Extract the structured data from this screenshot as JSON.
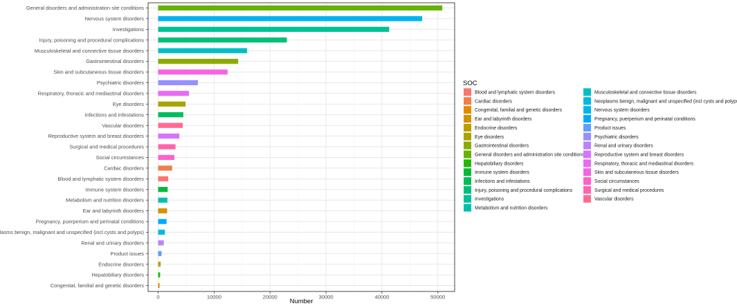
{
  "chart_data": {
    "type": "bar",
    "orientation": "horizontal",
    "xlabel": "Number",
    "ylabel": "",
    "xlim": [
      -1800,
      53000
    ],
    "xticks": [
      0,
      10000,
      20000,
      30000,
      40000,
      50000
    ],
    "grid": true,
    "legend": {
      "title": "SOC",
      "placement": "right",
      "entries": [
        {
          "label": "Blood and lymphatic system disorders",
          "color": "#F8766D"
        },
        {
          "label": "Cardiac disorders",
          "color": "#F07E4B"
        },
        {
          "label": "Congenital, familial and genetic disorders",
          "color": "#E38900"
        },
        {
          "label": "Ear and labyrinth disorders",
          "color": "#D39200"
        },
        {
          "label": "Endocrine disorders",
          "color": "#C09B00"
        },
        {
          "label": "Eye disorders",
          "color": "#A8A400"
        },
        {
          "label": "Gastrointestinal disorders",
          "color": "#8CAB00"
        },
        {
          "label": "General disorders and administration site conditions",
          "color": "#65B200"
        },
        {
          "label": "Hepatobiliary disorders",
          "color": "#24B700"
        },
        {
          "label": "Immune system disorders",
          "color": "#00BA38"
        },
        {
          "label": "Infections and infestations",
          "color": "#00BD5C"
        },
        {
          "label": "Injury, poisoning and procedural complications",
          "color": "#00C079"
        },
        {
          "label": "Investigations",
          "color": "#00C097"
        },
        {
          "label": "Metabolism and nutrition disorders",
          "color": "#00BFB1"
        },
        {
          "label": "Musculoskeletal and connective tissue disorders",
          "color": "#00BFC4"
        },
        {
          "label": "Neoplasms benign, malignant and unspecified (incl cysts and polyps)",
          "color": "#00BADE"
        },
        {
          "label": "Nervous system disorders",
          "color": "#00B4EF"
        },
        {
          "label": "Pregnancy, puerperium and perinatal conditions",
          "color": "#00A9FF"
        },
        {
          "label": "Product issues",
          "color": "#619CFF"
        },
        {
          "label": "Psychiatric disorders",
          "color": "#9590FF"
        },
        {
          "label": "Renal and urinary disorders",
          "color": "#B983FF"
        },
        {
          "label": "Reproductive system and breast disorders",
          "color": "#D575FE"
        },
        {
          "label": "Respiratory, thoracic and mediastinal disorders",
          "color": "#E76BF3"
        },
        {
          "label": "Skin and subcutaneous tissue disorders",
          "color": "#F564E3"
        },
        {
          "label": "Social circumstances",
          "color": "#FF61C9"
        },
        {
          "label": "Surgical and medical procedures",
          "color": "#FF65AC"
        },
        {
          "label": "Vascular disorders",
          "color": "#FF6C91"
        }
      ]
    },
    "categories": [
      "General disorders and administration site conditions",
      "Nervous system disorders",
      "Investigations",
      "Injury, poisoning and procedural complications",
      "Musculoskeletal and connective tissue disorders",
      "Gastrointestinal disorders",
      "Skin and subcutaneous tissue disorders",
      "Psychiatric disorders",
      "Respiratory, thoracic and mediastinal disorders",
      "Eye disorders",
      "Infections and infestations",
      "Vascular disorders",
      "Reproductive system and breast disorders",
      "Surgical and medical procedures",
      "Social circumstances",
      "Cardiac disorders",
      "Blood and lymphatic system disorders",
      "Immune system disorders",
      "Metabolism and nutrition disorders",
      "Ear and labyrinth disorders",
      "Pregnancy, puerperium and perinatal conditions",
      "Neoplasms benign, malignant and unspecified (incl cysts and polyps)",
      "Renal and urinary disorders",
      "Product issues",
      "Endocrine disorders",
      "Hepatobiliary disorders",
      "Congenital, familial and genetic disorders"
    ],
    "values": [
      50800,
      47200,
      41300,
      23000,
      15900,
      14300,
      12400,
      7100,
      5500,
      4900,
      4500,
      4400,
      3800,
      3100,
      2900,
      2500,
      1800,
      1700,
      1650,
      1600,
      1500,
      1200,
      1000,
      600,
      450,
      350,
      250
    ],
    "colors": [
      "#65B200",
      "#00B4EF",
      "#00C097",
      "#00C079",
      "#00BFC4",
      "#8CAB00",
      "#F564E3",
      "#9590FF",
      "#E76BF3",
      "#A8A400",
      "#00BD5C",
      "#FF6C91",
      "#D575FE",
      "#FF65AC",
      "#FF61C9",
      "#F07E4B",
      "#F8766D",
      "#00BA38",
      "#00BFB1",
      "#D39200",
      "#00A9FF",
      "#00BADE",
      "#B983FF",
      "#619CFF",
      "#C09B00",
      "#24B700",
      "#E38900"
    ]
  }
}
